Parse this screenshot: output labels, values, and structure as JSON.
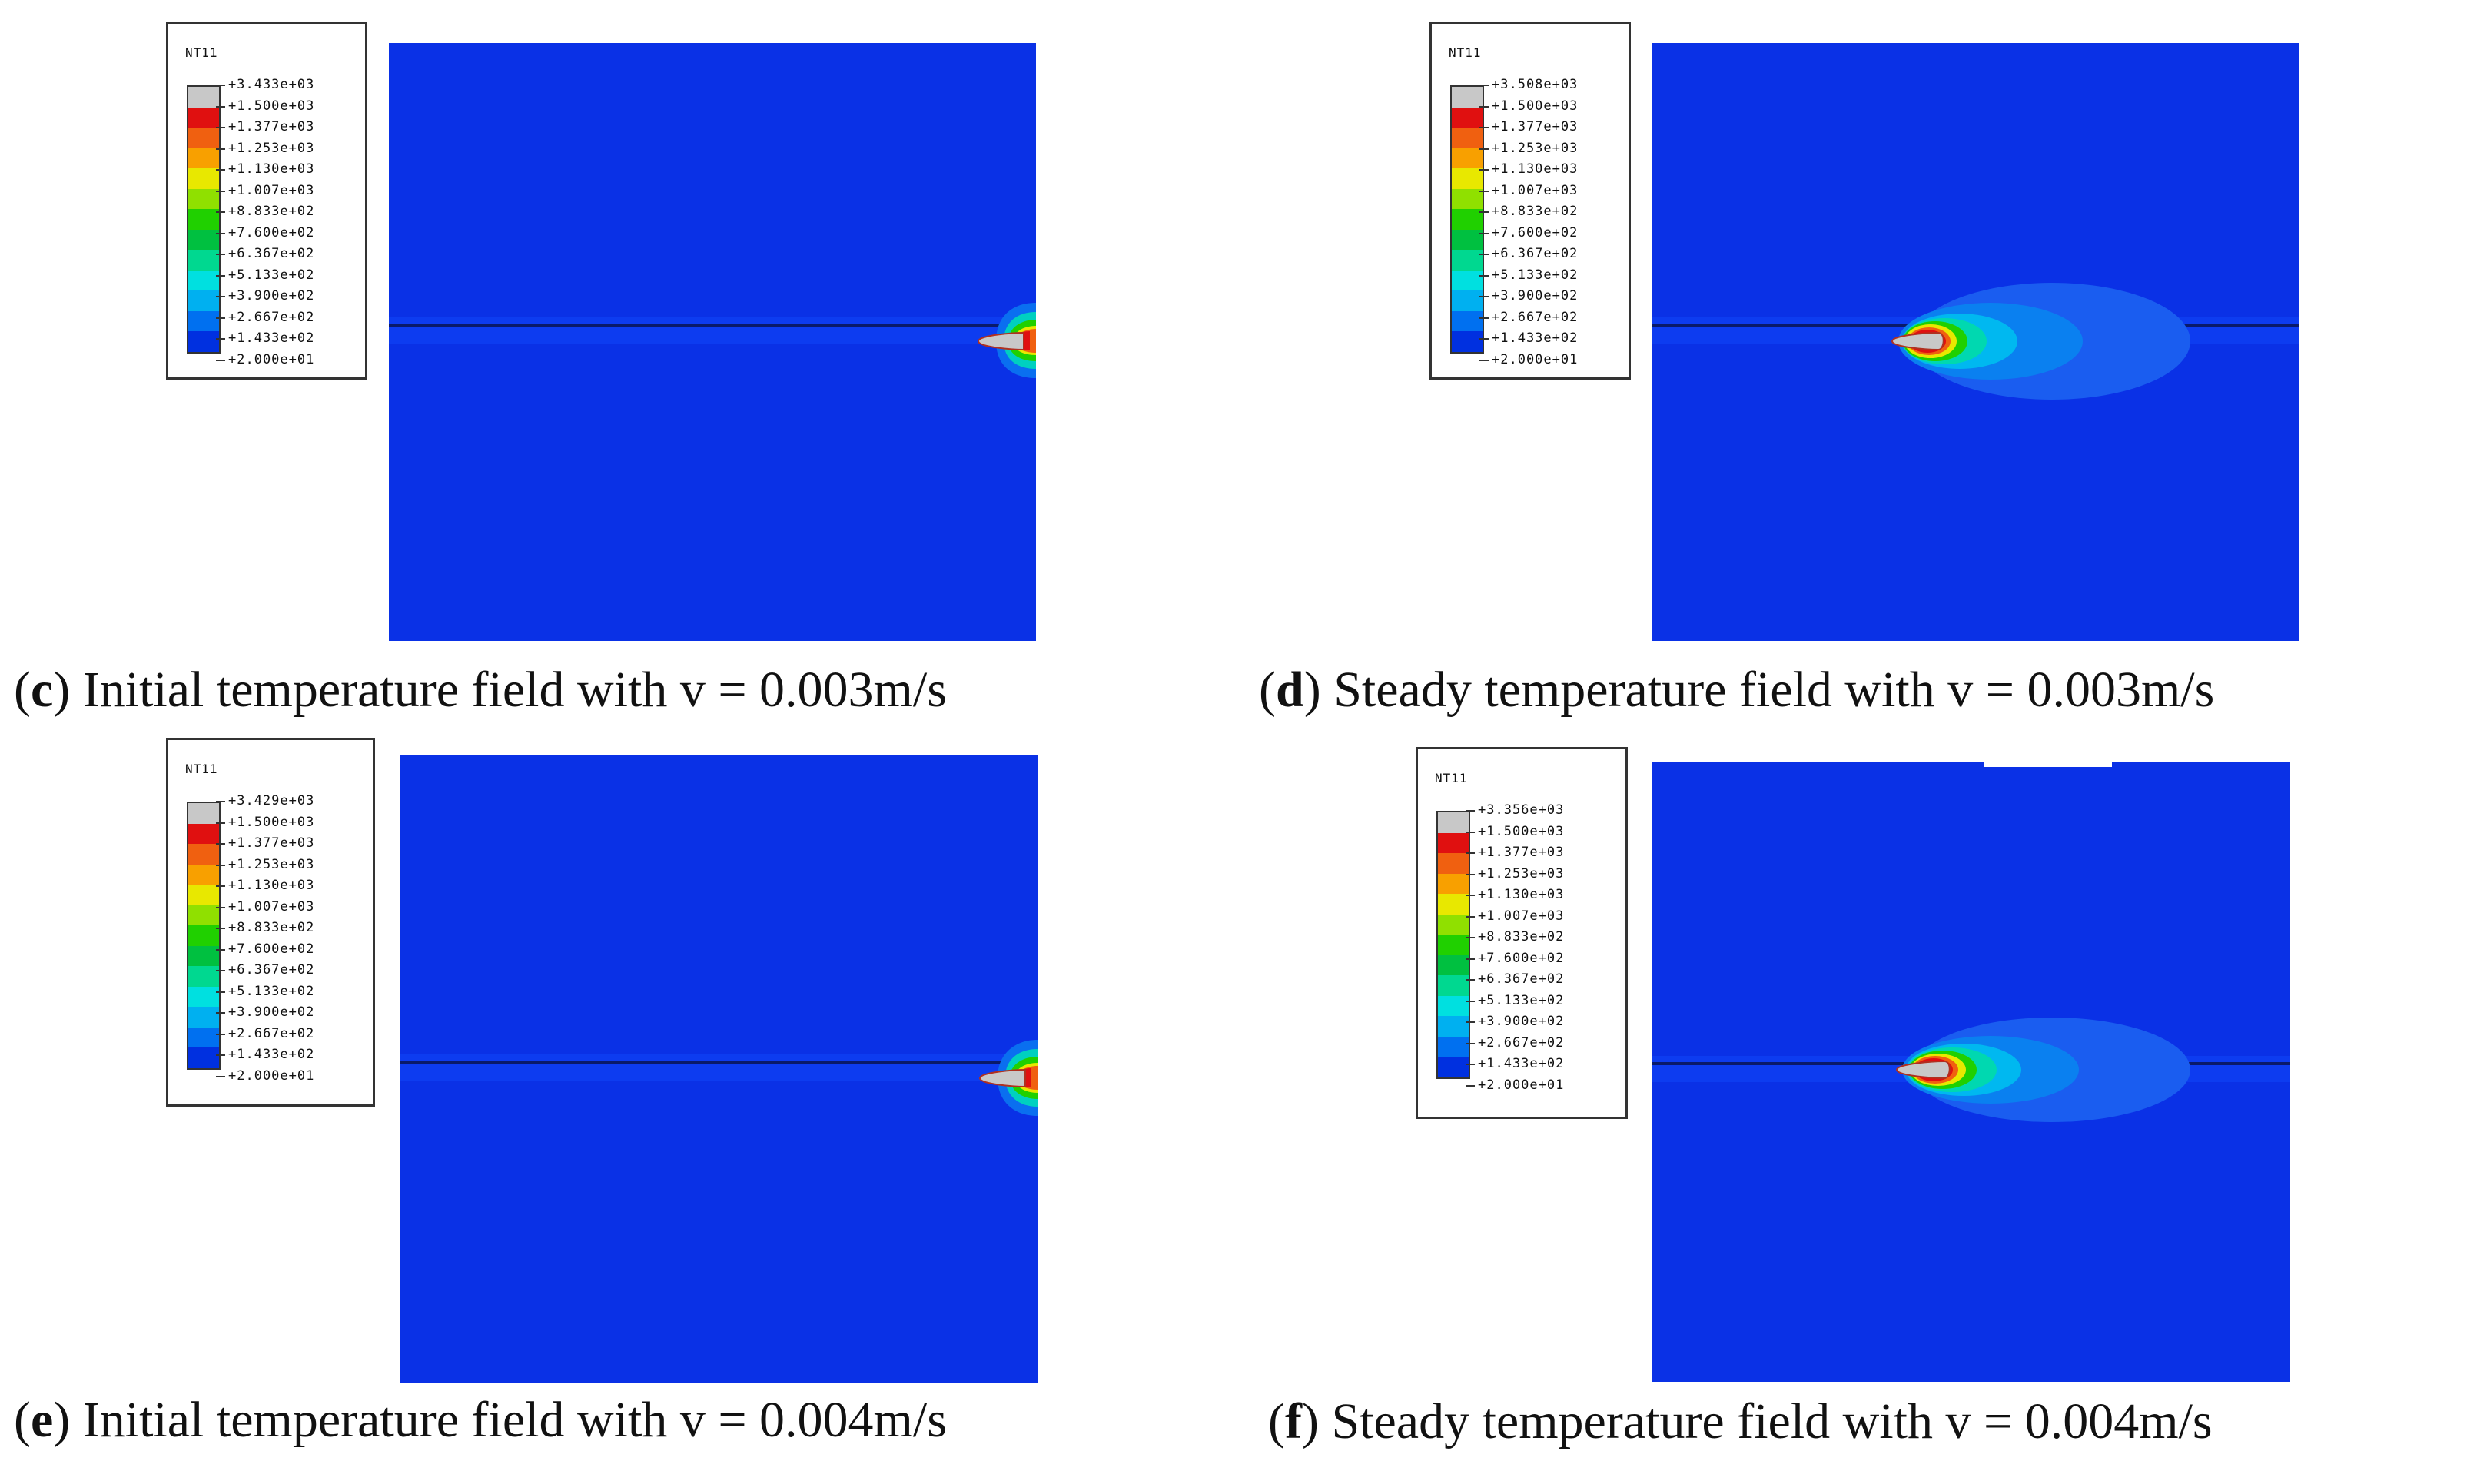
{
  "legend_colors": [
    "#c8c8c8",
    "#e01010",
    "#f06010",
    "#f8a000",
    "#e8e800",
    "#90e000",
    "#20d000",
    "#00c040",
    "#00d890",
    "#00e0e0",
    "#00b0f0",
    "#0070f0",
    "#0030e0"
  ],
  "field_color": "#0a31e6",
  "panels": [
    {
      "id": "c",
      "letter": "c",
      "caption": " Initial temperature field with v = 0.003m/s",
      "legend_var": "NT11",
      "legend_labels": [
        "+3.433e+03",
        "+1.500e+03",
        "+1.377e+03",
        "+1.253e+03",
        "+1.130e+03",
        "+1.007e+03",
        "+8.833e+02",
        "+7.600e+02",
        "+6.367e+02",
        "+5.133e+02",
        "+3.900e+02",
        "+2.667e+02",
        "+1.433e+02",
        "+2.000e+01"
      ]
    },
    {
      "id": "d",
      "letter": "d",
      "caption": " Steady temperature field with v = 0.003m/s",
      "legend_var": "NT11",
      "legend_labels": [
        "+3.508e+03",
        "+1.500e+03",
        "+1.377e+03",
        "+1.253e+03",
        "+1.130e+03",
        "+1.007e+03",
        "+8.833e+02",
        "+7.600e+02",
        "+6.367e+02",
        "+5.133e+02",
        "+3.900e+02",
        "+2.667e+02",
        "+1.433e+02",
        "+2.000e+01"
      ]
    },
    {
      "id": "e",
      "letter": "e",
      "caption": " Initial temperature field with v = 0.004m/s",
      "legend_var": "NT11",
      "legend_labels": [
        "+3.429e+03",
        "+1.500e+03",
        "+1.377e+03",
        "+1.253e+03",
        "+1.130e+03",
        "+1.007e+03",
        "+8.833e+02",
        "+7.600e+02",
        "+6.367e+02",
        "+5.133e+02",
        "+3.900e+02",
        "+2.667e+02",
        "+1.433e+02",
        "+2.000e+01"
      ]
    },
    {
      "id": "f",
      "letter": "f",
      "caption": " Steady temperature field with v = 0.004m/s",
      "legend_var": "NT11",
      "legend_labels": [
        "+3.356e+03",
        "+1.500e+03",
        "+1.377e+03",
        "+1.253e+03",
        "+1.130e+03",
        "+1.007e+03",
        "+8.833e+02",
        "+7.600e+02",
        "+6.367e+02",
        "+5.133e+02",
        "+3.900e+02",
        "+2.667e+02",
        "+1.433e+02",
        "+2.000e+01"
      ]
    }
  ]
}
